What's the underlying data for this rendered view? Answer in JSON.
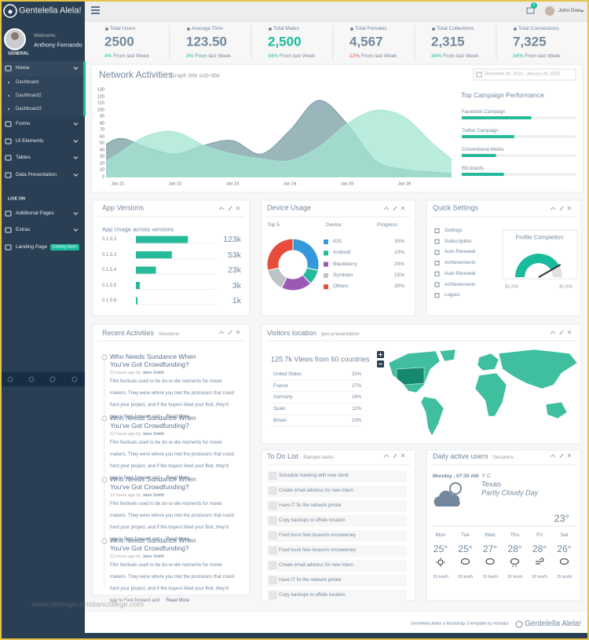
{
  "sidebar": {
    "brand": "Gentelella Alela!",
    "welcome": "Welcome,",
    "user": "Anthony Fernando",
    "section": "GENERAL",
    "menu": [
      {
        "label": "Home",
        "children": [
          "Dashboard",
          "Dashboard2",
          "Dashboard3"
        ]
      },
      {
        "label": "Forms"
      },
      {
        "label": "UI Elements"
      },
      {
        "label": "Tables"
      },
      {
        "label": "Data Presentation"
      }
    ],
    "section2": "LIVE ON",
    "menu2": [
      {
        "label": "Additional Pages"
      },
      {
        "label": "Extras"
      },
      {
        "label": "Landing Page",
        "badge": "Coming Soon!"
      }
    ]
  },
  "topnav": {
    "user": "John Doe",
    "notifications": "6"
  },
  "stats": [
    {
      "label": "Total Users",
      "value": "2500",
      "change": "4%",
      "note": "From last Week",
      "value_color": "#73879c",
      "change_color": "#1abb9c"
    },
    {
      "label": "Average Time",
      "value": "123.50",
      "change": "3%",
      "note": "From last Week",
      "value_color": "#73879c",
      "change_color": "#1abb9c"
    },
    {
      "label": "Total Males",
      "value": "2,500",
      "change": "34%",
      "note": "From last Week",
      "value_color": "#1abb9c",
      "change_color": "#1abb9c"
    },
    {
      "label": "Total Females",
      "value": "4,567",
      "change": "12%",
      "note": "From last Week",
      "value_color": "#73879c",
      "change_color": "#e74c3c"
    },
    {
      "label": "Total Collections",
      "value": "2,315",
      "change": "34%",
      "note": "From last Week",
      "value_color": "#73879c",
      "change_color": "#1abb9c"
    },
    {
      "label": "Total Connections",
      "value": "7,325",
      "change": "34%",
      "note": "From last Week",
      "value_color": "#73879c",
      "change_color": "#1abb9c"
    }
  ],
  "network_chart": {
    "type": "area",
    "title": "Network Activities",
    "subtitle": "Graph title sub-title",
    "date_range": "December 30, 2014 - January 28, 2015",
    "categories": [
      null,
      "Jan 21",
      null,
      "Jan 22",
      null,
      "Jan 23",
      null,
      "Jan 24",
      null,
      "Jan 25",
      null,
      "Jan 26",
      null,
      null
    ],
    "series": [
      {
        "color": "#7a9ea4",
        "values": [
          30,
          58,
          45,
          35,
          48,
          55,
          35,
          70,
          115,
          80,
          25,
          12,
          8,
          5
        ]
      },
      {
        "color": "#a3e6d3",
        "values": [
          10,
          35,
          62,
          68,
          48,
          35,
          28,
          25,
          45,
          80,
          100,
          90,
          50,
          15
        ]
      }
    ],
    "ylim": [
      0,
      130
    ],
    "yticks": [
      0,
      10,
      20,
      30,
      40,
      50,
      60,
      70,
      80,
      90,
      100,
      110,
      120,
      130
    ]
  },
  "campaigns": {
    "title": "Top Campaign Performance",
    "xlim": [
      0,
      100
    ],
    "color": "#26b99a",
    "items": [
      {
        "label": "Facebook Campaign",
        "value": 61
      },
      {
        "label": "Twitter Campaign",
        "value": 46
      },
      {
        "label": "Conventional Media",
        "value": 30
      },
      {
        "label": "Bill boards",
        "value": 37
      }
    ]
  },
  "app_versions": {
    "title": "App Versions",
    "subtitle": "App Usage across versions",
    "xlim": [
      0,
      100
    ],
    "color": "#26b99a",
    "rows": [
      {
        "label": "0.1.5.2",
        "progress": 65,
        "count": "123k"
      },
      {
        "label": "0.1.5.3",
        "progress": 45,
        "count": "53k"
      },
      {
        "label": "0.1.5.4",
        "progress": 25,
        "count": "23k"
      },
      {
        "label": "0.1.5.5",
        "progress": 5,
        "count": "3k"
      },
      {
        "label": "0.1.5.6",
        "progress": 2,
        "count": "1k"
      }
    ]
  },
  "device_usage": {
    "type": "pie",
    "donut": true,
    "title": "Device Usage",
    "top": "Top 5",
    "col_device": "Device",
    "col_progress": "Progress",
    "categories": [
      "IOS",
      "Android",
      "Blackberry",
      "Symbian",
      "Others"
    ],
    "values": [
      30,
      10,
      20,
      15,
      30
    ],
    "value_labels": [
      "30%",
      "10%",
      "20%",
      "15%",
      "30%"
    ],
    "colors": [
      "#3498db",
      "#26b99a",
      "#9b59b6",
      "#bdc3c7",
      "#e74c3c"
    ]
  },
  "quick_settings": {
    "title": "Quick Settings",
    "items": [
      "Settings",
      "Subscription",
      "Auto Renewal",
      "Achievements",
      "Auto Renewal",
      "Achievements",
      "Logout"
    ],
    "gauge": {
      "title": "Profile Completion",
      "min": {
        "value": 3200,
        "label": "$3,200"
      },
      "max": {
        "value": 5000,
        "label": "$5,000"
      },
      "value": 4700,
      "color": "#1abb9c"
    }
  },
  "recent_activities": {
    "title": "Recent Activities",
    "subtitle": "Sessions",
    "items": [
      {
        "title": "Who Needs Sundance When You've Got Crowdfunding?",
        "meta": "13 hours ago by",
        "author": "Jane Smith",
        "body": "Film festivals used to be do-or-die moments for movie makers. They were where you met the producers that could fund your project, and if the buyers liked your flick, they'd pay to Fast-forward and",
        "more": "Read More"
      },
      {
        "title": "Who Needs Sundance When You've Got Crowdfunding?",
        "meta": "13 hours ago by",
        "author": "Jane Smith",
        "body": "Film festivals used to be do-or-die moments for movie makers. They were where you met the producers that could fund your project, and if the buyers liked your flick, they'd pay to Fast-forward and",
        "more": "Read More"
      },
      {
        "title": "Who Needs Sundance When You've Got Crowdfunding?",
        "meta": "13 hours ago by",
        "author": "Jane Smith",
        "body": "Film festivals used to be do-or-die moments for movie makers. They were where you met the producers that could fund your project, and if the buyers liked your flick, they'd pay to Fast-forward and",
        "more": "Read More"
      },
      {
        "title": "Who Needs Sundance When You've Got Crowdfunding?",
        "meta": "13 hours ago by",
        "author": "Jane Smith",
        "body": "Film festivals used to be do-or-die moments for movie makers. They were where you met the producers that could fund your project, and if the buyers liked your flick, they'd pay to Fast-forward and",
        "more": "Read More"
      }
    ]
  },
  "visitors": {
    "title": "Visitors location",
    "subtitle": "geo-presentation",
    "headline": "125.7k Views from 60 countries",
    "rows": [
      {
        "country": "United States",
        "share": "33%"
      },
      {
        "country": "France",
        "share": "27%"
      },
      {
        "country": "Germany",
        "share": "16%"
      },
      {
        "country": "Spain",
        "share": "11%"
      },
      {
        "country": "Britain",
        "share": "10%"
      }
    ]
  },
  "todo": {
    "title": "To Do List",
    "subtitle": "Sample tasks",
    "items": [
      "Schedule meeting with new client",
      "Create email address for new intern",
      "Have IT fix the network printer",
      "Copy backups to offsite location",
      "Food truck fixie locavors mcsweeney",
      "Food truck fixie locavors mcsweeney",
      "Create email address for new intern",
      "Have IT fix the network printer",
      "Copy backups to offsite location"
    ]
  },
  "weather": {
    "title": "Daily active users",
    "subtitle": "Sessions",
    "time": "Monday , 07:30 AM",
    "units": "F C",
    "location": "Texas",
    "condition": "Partly Cloudy Day",
    "temp": "23°",
    "days": [
      {
        "day": "Mon",
        "temp": "25°",
        "wind": "15 km/h"
      },
      {
        "day": "Tue",
        "temp": "25°",
        "wind": "15 km/h"
      },
      {
        "day": "Wed",
        "temp": "27°",
        "wind": "15 km/h"
      },
      {
        "day": "Thu",
        "temp": "28°",
        "wind": "15 km/h"
      },
      {
        "day": "Fri",
        "temp": "28°",
        "wind": "15 km/h"
      },
      {
        "day": "Sat",
        "temp": "26°",
        "wind": "15 km/h"
      }
    ]
  },
  "footer": {
    "credit": "Gentelella Alela! a Bootstrap 3 template by Kimlabs",
    "brand": "Gentelella Alela!"
  },
  "watermark": "www.heritagechristiancollege.com"
}
